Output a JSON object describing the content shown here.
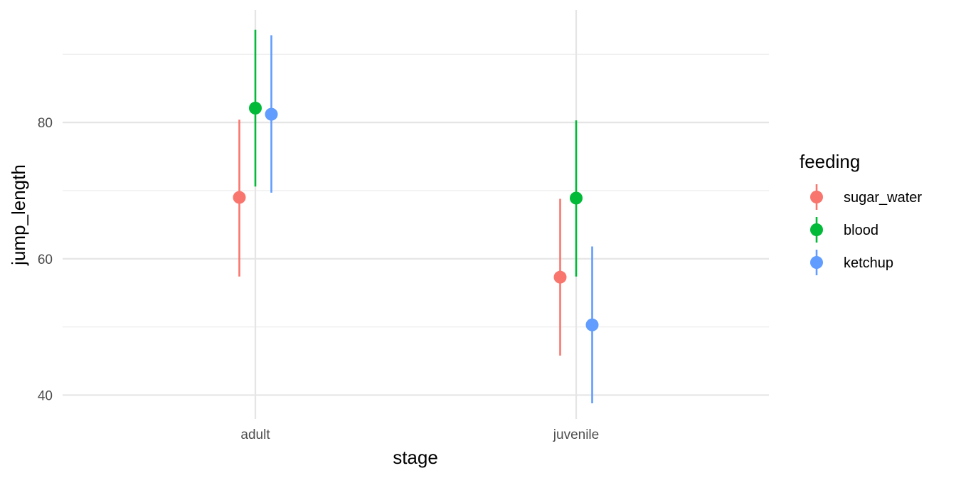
{
  "chart_data": {
    "type": "scatter",
    "geom": "pointrange",
    "xlabel": "stage",
    "ylabel": "jump_length",
    "categories": [
      "adult",
      "juvenile"
    ],
    "ylim": [
      36.5,
      96.5
    ],
    "yticks": [
      40,
      60,
      80
    ],
    "grid": true,
    "legend": {
      "title": "feeding",
      "position": "right"
    },
    "series": [
      {
        "name": "sugar_water",
        "color": "#F8766D",
        "values": [
          69.0,
          57.3
        ],
        "lower": [
          57.4,
          45.8
        ],
        "upper": [
          80.4,
          68.8
        ]
      },
      {
        "name": "blood",
        "color": "#00BA38",
        "values": [
          82.1,
          68.9
        ],
        "lower": [
          70.6,
          57.4
        ],
        "upper": [
          93.6,
          80.3
        ]
      },
      {
        "name": "ketchup",
        "color": "#619CFF",
        "values": [
          81.2,
          50.3
        ],
        "lower": [
          69.7,
          38.8
        ],
        "upper": [
          92.8,
          61.8
        ]
      }
    ]
  }
}
